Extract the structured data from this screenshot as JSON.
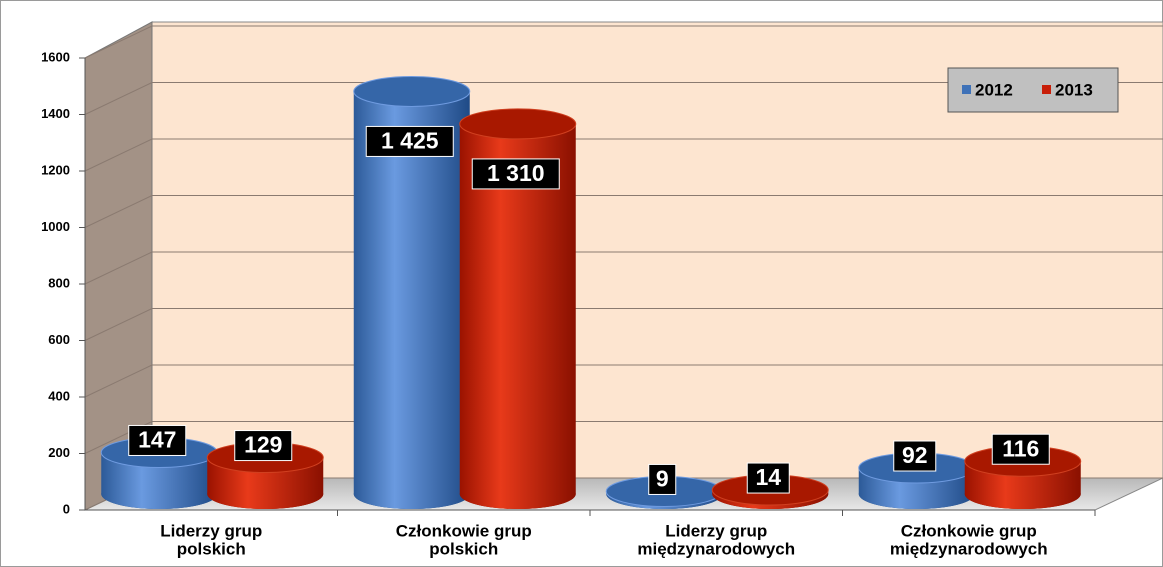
{
  "chart_data": {
    "type": "bar3d",
    "categories": [
      [
        "Liderzy grup",
        "polskich"
      ],
      [
        "Członkowie grup",
        "polskich"
      ],
      [
        "Liderzy grup",
        "międzynarodowych"
      ],
      [
        "Członkowie grup",
        "międzynarodowych"
      ]
    ],
    "series": [
      {
        "name": "2012",
        "color": "#3f72b8",
        "values": [
          147,
          1425,
          9,
          92
        ],
        "value_labels": [
          "147",
          "1 425",
          "9",
          "92"
        ]
      },
      {
        "name": "2013",
        "color": "#c81e08",
        "values": [
          129,
          1310,
          14,
          116
        ],
        "value_labels": [
          "129",
          "1 310",
          "14",
          "116"
        ]
      }
    ],
    "ylim": [
      0,
      1600
    ],
    "yticks": [
      0,
      200,
      400,
      600,
      800,
      1000,
      1200,
      1400,
      1600
    ],
    "grid": true,
    "legend": "top-right"
  }
}
